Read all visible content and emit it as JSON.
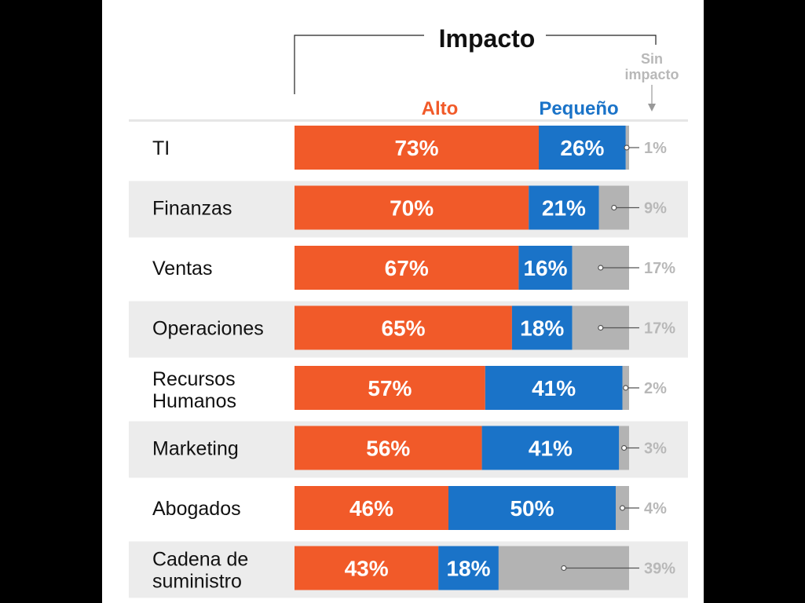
{
  "chart_data": {
    "type": "bar",
    "stacked": true,
    "orientation": "horizontal",
    "percent_scale": true,
    "group_label": "Impacto",
    "categories": [
      "TI",
      "Finanzas",
      "Ventas",
      "Operaciones",
      "Recursos Humanos",
      "Marketing",
      "Abogados",
      "Cadena de suministro"
    ],
    "series": [
      {
        "name": "Alto",
        "values": [
          73,
          70,
          67,
          65,
          57,
          56,
          46,
          43
        ]
      },
      {
        "name": "Pequeño",
        "values": [
          26,
          21,
          16,
          18,
          41,
          41,
          50,
          18
        ]
      },
      {
        "name": "Sin impacto",
        "values": [
          1,
          9,
          17,
          17,
          2,
          3,
          4,
          39
        ]
      }
    ],
    "value_labels": [
      [
        "73%",
        "70%",
        "67%",
        "65%",
        "57%",
        "56%",
        "46%",
        "43%"
      ],
      [
        "26%",
        "21%",
        "16%",
        "18%",
        "41%",
        "41%",
        "50%",
        "18%"
      ],
      [
        "1%",
        "9%",
        "17%",
        "17%",
        "2%",
        "3%",
        "4%",
        "39%"
      ]
    ],
    "colors": {
      "alto": "#f15a29",
      "pequeno": "#1a73c8",
      "sin_impacto": "#b3b3b3",
      "stripe": "#ececec",
      "text": "#111111",
      "muted": "#b8b8b8"
    },
    "grid": false,
    "legend": "top"
  }
}
